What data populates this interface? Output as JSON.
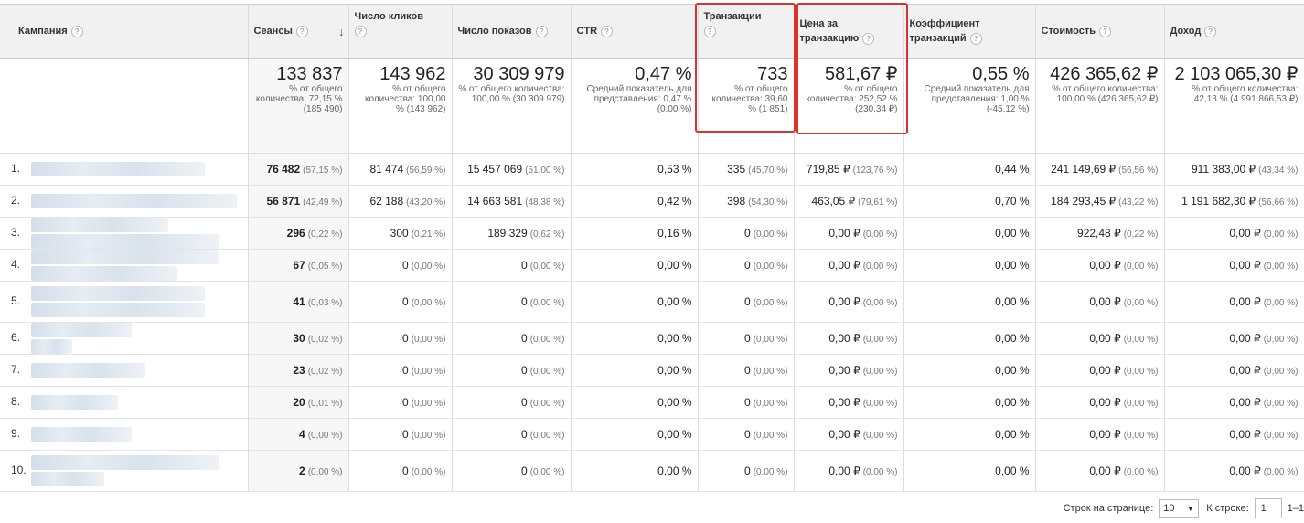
{
  "headers": {
    "campaign": "Кампания",
    "sessions": "Сеансы",
    "clicks": "Число кликов",
    "impressions": "Число показов",
    "ctr": "CTR",
    "transactions": "Транзакции",
    "cost_per_transaction": "Цена за транзакцию",
    "conversion_rate": "Коэффициент транзакций",
    "cost": "Стоимость",
    "revenue": "Доход",
    "help_icon": "?"
  },
  "totals": {
    "sessions": {
      "value": "133 837",
      "sub": "% от общего количества: 72,15 % (185 490)"
    },
    "clicks": {
      "value": "143 962",
      "sub": "% от общего количества: 100,00 % (143 962)"
    },
    "impressions": {
      "value": "30 309 979",
      "sub": "% от общего количества: 100,00 % (30 309 979)"
    },
    "ctr": {
      "value": "0,47 %",
      "sub": "Средний показатель для представления: 0,47 % (0,00 %)"
    },
    "transactions": {
      "value": "733",
      "sub": "% от общего количества: 39,60 % (1 851)"
    },
    "cost_per_transaction": {
      "value": "581,67 ₽",
      "sub": "% от общего количества: 252,52 % (230,34 ₽)"
    },
    "conversion_rate": {
      "value": "0,55 %",
      "sub": "Средний показатель для представления: 1,00 % (-45,12 %)"
    },
    "cost": {
      "value": "426 365,62 ₽",
      "sub": "% от общего количества: 100,00 % (426 365,62 ₽)"
    },
    "revenue": {
      "value": "2 103 065,30 ₽",
      "sub": "% от общего количества: 42,13 % (4 991 866,53 ₽)"
    }
  },
  "rows": [
    {
      "num": "1.",
      "sessions": "76 482",
      "sessions_pct": "(57,15 %)",
      "clicks": "81 474",
      "clicks_pct": "(56,59 %)",
      "impressions": "15 457 069",
      "impressions_pct": "(51,00 %)",
      "ctr": "0,53 %",
      "transactions": "335",
      "transactions_pct": "(45,70 %)",
      "cpt": "719,85 ₽",
      "cpt_pct": "(123,76 %)",
      "cr": "0,44 %",
      "cost": "241 149,69 ₽",
      "cost_pct": "(56,56 %)",
      "revenue": "911 383,00 ₽",
      "revenue_pct": "(43,34 %)"
    },
    {
      "num": "2.",
      "sessions": "56 871",
      "sessions_pct": "(42,49 %)",
      "clicks": "62 188",
      "clicks_pct": "(43,20 %)",
      "impressions": "14 663 581",
      "impressions_pct": "(48,38 %)",
      "ctr": "0,42 %",
      "transactions": "398",
      "transactions_pct": "(54,30 %)",
      "cpt": "463,05 ₽",
      "cpt_pct": "(79,61 %)",
      "cr": "0,70 %",
      "cost": "184 293,45 ₽",
      "cost_pct": "(43,22 %)",
      "revenue": "1 191 682,30 ₽",
      "revenue_pct": "(56,66 %)"
    },
    {
      "num": "3.",
      "sessions": "296",
      "sessions_pct": "(0,22 %)",
      "clicks": "300",
      "clicks_pct": "(0,21 %)",
      "impressions": "189 329",
      "impressions_pct": "(0,62 %)",
      "ctr": "0,16 %",
      "transactions": "0",
      "transactions_pct": "(0,00 %)",
      "cpt": "0,00 ₽",
      "cpt_pct": "(0,00 %)",
      "cr": "0,00 %",
      "cost": "922,48 ₽",
      "cost_pct": "(0,22 %)",
      "revenue": "0,00 ₽",
      "revenue_pct": "(0,00 %)"
    },
    {
      "num": "4.",
      "sessions": "67",
      "sessions_pct": "(0,05 %)",
      "clicks": "0",
      "clicks_pct": "(0,00 %)",
      "impressions": "0",
      "impressions_pct": "(0,00 %)",
      "ctr": "0,00 %",
      "transactions": "0",
      "transactions_pct": "(0,00 %)",
      "cpt": "0,00 ₽",
      "cpt_pct": "(0,00 %)",
      "cr": "0,00 %",
      "cost": "0,00 ₽",
      "cost_pct": "(0,00 %)",
      "revenue": "0,00 ₽",
      "revenue_pct": "(0,00 %)"
    },
    {
      "num": "5.",
      "sessions": "41",
      "sessions_pct": "(0,03 %)",
      "clicks": "0",
      "clicks_pct": "(0,00 %)",
      "impressions": "0",
      "impressions_pct": "(0,00 %)",
      "ctr": "0,00 %",
      "transactions": "0",
      "transactions_pct": "(0,00 %)",
      "cpt": "0,00 ₽",
      "cpt_pct": "(0,00 %)",
      "cr": "0,00 %",
      "cost": "0,00 ₽",
      "cost_pct": "(0,00 %)",
      "revenue": "0,00 ₽",
      "revenue_pct": "(0,00 %)"
    },
    {
      "num": "6.",
      "sessions": "30",
      "sessions_pct": "(0,02 %)",
      "clicks": "0",
      "clicks_pct": "(0,00 %)",
      "impressions": "0",
      "impressions_pct": "(0,00 %)",
      "ctr": "0,00 %",
      "transactions": "0",
      "transactions_pct": "(0,00 %)",
      "cpt": "0,00 ₽",
      "cpt_pct": "(0,00 %)",
      "cr": "0,00 %",
      "cost": "0,00 ₽",
      "cost_pct": "(0,00 %)",
      "revenue": "0,00 ₽",
      "revenue_pct": "(0,00 %)"
    },
    {
      "num": "7.",
      "sessions": "23",
      "sessions_pct": "(0,02 %)",
      "clicks": "0",
      "clicks_pct": "(0,00 %)",
      "impressions": "0",
      "impressions_pct": "(0,00 %)",
      "ctr": "0,00 %",
      "transactions": "0",
      "transactions_pct": "(0,00 %)",
      "cpt": "0,00 ₽",
      "cpt_pct": "(0,00 %)",
      "cr": "0,00 %",
      "cost": "0,00 ₽",
      "cost_pct": "(0,00 %)",
      "revenue": "0,00 ₽",
      "revenue_pct": "(0,00 %)"
    },
    {
      "num": "8.",
      "sessions": "20",
      "sessions_pct": "(0,01 %)",
      "clicks": "0",
      "clicks_pct": "(0,00 %)",
      "impressions": "0",
      "impressions_pct": "(0,00 %)",
      "ctr": "0,00 %",
      "transactions": "0",
      "transactions_pct": "(0,00 %)",
      "cpt": "0,00 ₽",
      "cpt_pct": "(0,00 %)",
      "cr": "0,00 %",
      "cost": "0,00 ₽",
      "cost_pct": "(0,00 %)",
      "revenue": "0,00 ₽",
      "revenue_pct": "(0,00 %)"
    },
    {
      "num": "9.",
      "sessions": "4",
      "sessions_pct": "(0,00 %)",
      "clicks": "0",
      "clicks_pct": "(0,00 %)",
      "impressions": "0",
      "impressions_pct": "(0,00 %)",
      "ctr": "0,00 %",
      "transactions": "0",
      "transactions_pct": "(0,00 %)",
      "cpt": "0,00 ₽",
      "cpt_pct": "(0,00 %)",
      "cr": "0,00 %",
      "cost": "0,00 ₽",
      "cost_pct": "(0,00 %)",
      "revenue": "0,00 ₽",
      "revenue_pct": "(0,00 %)"
    },
    {
      "num": "10.",
      "sessions": "2",
      "sessions_pct": "(0,00 %)",
      "clicks": "0",
      "clicks_pct": "(0,00 %)",
      "impressions": "0",
      "impressions_pct": "(0,00 %)",
      "ctr": "0,00 %",
      "transactions": "0",
      "transactions_pct": "(0,00 %)",
      "cpt": "0,00 ₽",
      "cpt_pct": "(0,00 %)",
      "cr": "0,00 %",
      "cost": "0,00 ₽",
      "cost_pct": "(0,00 %)",
      "revenue": "0,00 ₽",
      "revenue_pct": "(0,00 %)"
    }
  ],
  "footer": {
    "rows_per_page_label": "Строк на странице:",
    "rows_per_page_value": "10",
    "go_to_row_label": "К строке:",
    "go_to_row_value": "1",
    "range": "1–1"
  },
  "colors": {
    "highlight": "#d9332b",
    "header_bg": "#f1f1f1"
  },
  "icons": {
    "sort": "sort-descending-arrow-icon",
    "help": "help-circle-icon",
    "dropdown": "dropdown-arrow-icon"
  }
}
